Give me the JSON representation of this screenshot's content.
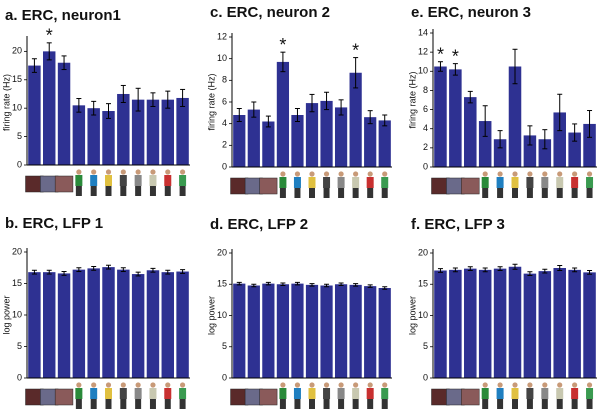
{
  "chart_data": [
    {
      "type": "bar",
      "title": "a. ERC, neuron1",
      "y_label": "firing rate (Hz)",
      "color": "#2e3192",
      "categories": [
        null,
        null,
        null,
        null,
        null,
        null,
        null,
        null,
        null,
        null,
        null
      ],
      "values": [
        17.5,
        20,
        18,
        10.5,
        10,
        9.5,
        12.5,
        11.5,
        11.5,
        11.5,
        11.8
      ],
      "errors": [
        1.2,
        1.5,
        1.2,
        1.2,
        1.2,
        1.3,
        1.5,
        2,
        1.2,
        1.5,
        1.5
      ],
      "annotations": [
        {
          "text": "*",
          "index": 1
        }
      ],
      "ylim": [
        0,
        22
      ],
      "yticks": [
        0,
        5,
        10,
        15,
        20
      ]
    },
    {
      "type": "bar",
      "title": "b. ERC, LFP 1",
      "y_label": "log power",
      "color": "#2e3192",
      "categories": [
        null,
        null,
        null,
        null,
        null,
        null,
        null,
        null,
        null,
        null,
        null
      ],
      "values": [
        16.8,
        16.8,
        16.6,
        17.2,
        17.4,
        17.6,
        17.2,
        16.5,
        17.1,
        16.8,
        16.9
      ],
      "errors": [
        0.3,
        0.3,
        0.3,
        0.3,
        0.3,
        0.3,
        0.3,
        0.3,
        0.3,
        0.3,
        0.3
      ],
      "ylim": [
        0,
        20
      ],
      "yticks": [
        0,
        5,
        10,
        15,
        20
      ]
    },
    {
      "type": "bar",
      "title": "c. ERC, neuron 2",
      "y_label": "firing rate (Hz)",
      "color": "#2e3192",
      "categories": [
        null,
        null,
        null,
        null,
        null,
        null,
        null,
        null,
        null,
        null,
        null
      ],
      "values": [
        4.8,
        5.3,
        4.2,
        9.7,
        4.8,
        5.9,
        6.1,
        5.5,
        8.7,
        4.6,
        4.3
      ],
      "errors": [
        0.6,
        0.7,
        0.5,
        0.9,
        0.6,
        0.8,
        0.8,
        0.7,
        1.4,
        0.6,
        0.5
      ],
      "annotations": [
        {
          "text": "*",
          "index": 3
        },
        {
          "text": "*",
          "index": 8
        }
      ],
      "ylim": [
        0,
        12
      ],
      "yticks": [
        0,
        2,
        4,
        6,
        8,
        10,
        12
      ]
    },
    {
      "type": "bar",
      "title": "d. ERC, LFP 2",
      "y_label": "log power",
      "color": "#2e3192",
      "categories": [
        null,
        null,
        null,
        null,
        null,
        null,
        null,
        null,
        null,
        null,
        null
      ],
      "values": [
        15.1,
        14.8,
        15.1,
        15.0,
        15.1,
        14.9,
        14.8,
        15.0,
        14.9,
        14.7,
        14.4
      ],
      "errors": [
        0.2,
        0.2,
        0.2,
        0.2,
        0.2,
        0.2,
        0.2,
        0.2,
        0.2,
        0.2,
        0.2
      ],
      "ylim": [
        0,
        20
      ],
      "yticks": [
        0,
        5,
        10,
        15,
        20
      ]
    },
    {
      "type": "bar",
      "title": "e. ERC, neuron 3",
      "y_label": "firing rate (Hz)",
      "color": "#2e3192",
      "categories": [
        null,
        null,
        null,
        null,
        null,
        null,
        null,
        null,
        null,
        null,
        null
      ],
      "values": [
        10.5,
        10.2,
        7.3,
        4.8,
        2.9,
        10.5,
        3.3,
        2.9,
        5.7,
        3.6,
        4.5
      ],
      "errors": [
        0.5,
        0.6,
        0.6,
        1.6,
        0.9,
        1.8,
        1.0,
        1.0,
        1.9,
        0.9,
        1.4
      ],
      "annotations": [
        {
          "text": "*",
          "index": 0
        },
        {
          "text": "*",
          "index": 1
        }
      ],
      "ylim": [
        0,
        14
      ],
      "yticks": [
        0,
        2,
        4,
        6,
        8,
        10,
        12,
        14
      ]
    },
    {
      "type": "bar",
      "title": "f. ERC, LFP 3",
      "y_label": "log power",
      "color": "#2e3192",
      "categories": [
        null,
        null,
        null,
        null,
        null,
        null,
        null,
        null,
        null,
        null,
        null
      ],
      "values": [
        17.2,
        17.3,
        17.5,
        17.3,
        17.5,
        17.8,
        16.7,
        17.1,
        17.6,
        17.3,
        16.9
      ],
      "errors": [
        0.3,
        0.3,
        0.3,
        0.3,
        0.3,
        0.4,
        0.3,
        0.3,
        0.4,
        0.3,
        0.3
      ],
      "ylim": [
        0,
        20
      ],
      "yticks": [
        0,
        5,
        10,
        15,
        20
      ]
    }
  ]
}
